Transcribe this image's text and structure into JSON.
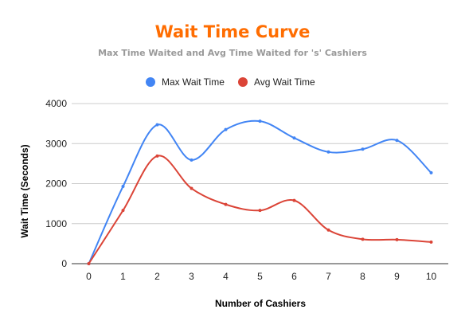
{
  "chart_data": {
    "type": "line",
    "title": "Wait Time Curve",
    "subtitle": "Max Time Waited and Avg Time Waited for 's' Cashiers",
    "xlabel": "Number of Cashiers",
    "ylabel": "Wait Time (Seconds)",
    "x": [
      0,
      1,
      2,
      3,
      4,
      5,
      6,
      7,
      8,
      9,
      10
    ],
    "ylim": [
      0,
      4000
    ],
    "yticks": [
      0,
      1000,
      2000,
      3000,
      4000
    ],
    "grid": true,
    "legend_position": "top",
    "series": [
      {
        "name": "Max Wait Time",
        "color": "#4285f4",
        "values": [
          0,
          1930,
          3470,
          2590,
          3350,
          3560,
          3140,
          2790,
          2860,
          3080,
          2270
        ]
      },
      {
        "name": "Avg Wait Time",
        "color": "#db4437",
        "values": [
          0,
          1330,
          2690,
          1880,
          1480,
          1330,
          1580,
          840,
          610,
          600,
          540
        ]
      }
    ]
  }
}
